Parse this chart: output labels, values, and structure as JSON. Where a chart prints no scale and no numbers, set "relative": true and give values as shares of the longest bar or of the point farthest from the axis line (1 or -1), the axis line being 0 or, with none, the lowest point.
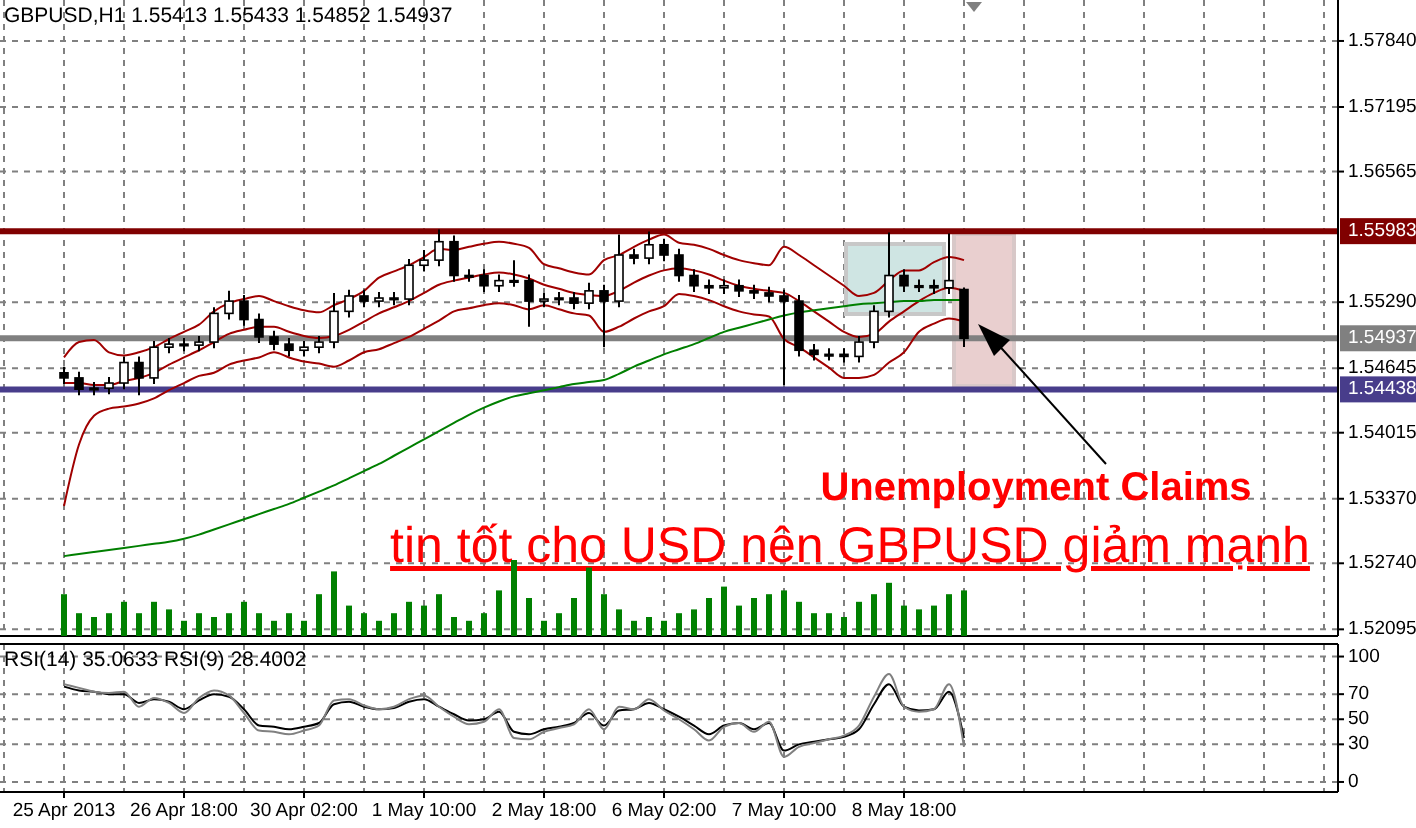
{
  "chart_data": [
    {
      "type": "candlestick",
      "title": "GBPUSD,H1 1.55413 1.55433 1.54852 1.54937",
      "categories": [
        null,
        null,
        null,
        null,
        null,
        null,
        null,
        null,
        null,
        null,
        null,
        null,
        null,
        null,
        null,
        null,
        null,
        null,
        null,
        null,
        null,
        null,
        null,
        null,
        null,
        null,
        null,
        null,
        null,
        null,
        null,
        null,
        null,
        null,
        null,
        null,
        null,
        null,
        null,
        null,
        null,
        null,
        null,
        null,
        null,
        null,
        null,
        null,
        null,
        null,
        null,
        null,
        null,
        null,
        null,
        null,
        null,
        null,
        null,
        null,
        null
      ],
      "ohlc": [
        [
          1.546,
          1.5466,
          1.5449,
          1.5455
        ],
        [
          1.5455,
          1.5461,
          1.5438,
          1.5444
        ],
        [
          1.5444,
          1.5451,
          1.5438,
          1.5445
        ],
        [
          1.5445,
          1.5456,
          1.5439,
          1.545
        ],
        [
          1.545,
          1.5476,
          1.5444,
          1.547
        ],
        [
          1.547,
          1.5476,
          1.5438,
          1.5455
        ],
        [
          1.5455,
          1.5491,
          1.5449,
          1.5485
        ],
        [
          1.5485,
          1.5494,
          1.5479,
          1.5488
        ],
        [
          1.5488,
          1.5494,
          1.5481,
          1.5487
        ],
        [
          1.5487,
          1.5496,
          1.5481,
          1.549
        ],
        [
          1.549,
          1.5524,
          1.5484,
          1.5518
        ],
        [
          1.5518,
          1.554,
          1.5512,
          1.553
        ],
        [
          1.553,
          1.5536,
          1.5506,
          1.5512
        ],
        [
          1.5512,
          1.5518,
          1.5489,
          1.5495
        ],
        [
          1.5495,
          1.5501,
          1.5482,
          1.5488
        ],
        [
          1.5488,
          1.5494,
          1.5476,
          1.5482
        ],
        [
          1.5482,
          1.5491,
          1.5476,
          1.5485
        ],
        [
          1.5485,
          1.5496,
          1.5479,
          1.549
        ],
        [
          1.549,
          1.5538,
          1.5484,
          1.552
        ],
        [
          1.552,
          1.5541,
          1.5514,
          1.5535
        ],
        [
          1.5535,
          1.5541,
          1.5524,
          1.553
        ],
        [
          1.553,
          1.5539,
          1.5524,
          1.5533
        ],
        [
          1.5533,
          1.5539,
          1.5526,
          1.5532
        ],
        [
          1.5532,
          1.5571,
          1.5526,
          1.5565
        ],
        [
          1.5565,
          1.558,
          1.5559,
          1.557
        ],
        [
          1.557,
          1.56,
          1.5564,
          1.5588
        ],
        [
          1.5588,
          1.5594,
          1.5549,
          1.5555
        ],
        [
          1.5555,
          1.5561,
          1.5549,
          1.5555
        ],
        [
          1.5555,
          1.5561,
          1.5539,
          1.5545
        ],
        [
          1.5545,
          1.5556,
          1.5539,
          1.555
        ],
        [
          1.555,
          1.557,
          1.5544,
          1.555
        ],
        [
          1.555,
          1.5556,
          1.5505,
          1.553
        ],
        [
          1.553,
          1.5538,
          1.5524,
          1.5532
        ],
        [
          1.5532,
          1.5539,
          1.5526,
          1.5533
        ],
        [
          1.5533,
          1.5539,
          1.5522,
          1.5528
        ],
        [
          1.5528,
          1.5548,
          1.5522,
          1.554
        ],
        [
          1.554,
          1.5546,
          1.5485,
          1.553
        ],
        [
          1.553,
          1.5595,
          1.5524,
          1.5575
        ],
        [
          1.5575,
          1.5581,
          1.5566,
          1.5572
        ],
        [
          1.5572,
          1.5598,
          1.5566,
          1.5585
        ],
        [
          1.5585,
          1.5591,
          1.5569,
          1.5575
        ],
        [
          1.5575,
          1.5581,
          1.5549,
          1.5555
        ],
        [
          1.5555,
          1.5561,
          1.5539,
          1.5545
        ],
        [
          1.5545,
          1.5551,
          1.5537,
          1.5543
        ],
        [
          1.5543,
          1.5551,
          1.5537,
          1.5545
        ],
        [
          1.5545,
          1.5551,
          1.5534,
          1.554
        ],
        [
          1.554,
          1.5546,
          1.5532,
          1.5538
        ],
        [
          1.5538,
          1.5544,
          1.5529,
          1.5535
        ],
        [
          1.5535,
          1.5541,
          1.5448,
          1.553
        ],
        [
          1.553,
          1.5536,
          1.5476,
          1.5482
        ],
        [
          1.5482,
          1.5488,
          1.5472,
          1.5478
        ],
        [
          1.5478,
          1.5484,
          1.5472,
          1.5478
        ],
        [
          1.5478,
          1.5484,
          1.547,
          1.5476
        ],
        [
          1.5476,
          1.5496,
          1.547,
          1.549
        ],
        [
          1.549,
          1.5526,
          1.5484,
          1.552
        ],
        [
          1.552,
          1.5597,
          1.5514,
          1.5555
        ],
        [
          1.5555,
          1.5561,
          1.5539,
          1.5545
        ],
        [
          1.5545,
          1.5551,
          1.5539,
          1.5545
        ],
        [
          1.5545,
          1.5551,
          1.5537,
          1.5543
        ],
        [
          1.5543,
          1.5596,
          1.5537,
          1.555
        ],
        [
          1.55413,
          1.55433,
          1.54852,
          1.54937
        ]
      ],
      "series": [
        {
          "type": "line",
          "color": "#a00000",
          "values": [
            1.5475,
            1.549,
            1.5492,
            1.548,
            1.5477,
            1.548,
            1.5485,
            1.5493,
            1.55,
            1.5507,
            1.552,
            1.5528,
            1.5532,
            1.5535,
            1.553,
            1.5525,
            1.5521,
            1.5519,
            1.5526,
            1.5532,
            1.554,
            1.5553,
            1.5559,
            1.5565,
            1.5573,
            1.5581,
            1.558,
            1.5583,
            1.5586,
            1.5588,
            1.5586,
            1.5582,
            1.5566,
            1.5562,
            1.5558,
            1.5556,
            1.557,
            1.5575,
            1.5583,
            1.559,
            1.5595,
            1.5587,
            1.5585,
            1.5581,
            1.5575,
            1.557,
            1.5567,
            1.5565,
            1.5583,
            1.5575,
            1.5565,
            1.5555,
            1.5545,
            1.5535,
            1.5538,
            1.555,
            1.556,
            1.556,
            1.5568,
            1.5573,
            1.557
          ]
        },
        {
          "type": "line",
          "color": "#a00000",
          "values": [
            1.545,
            1.545,
            1.5448,
            1.5448,
            1.5452,
            1.5455,
            1.546,
            1.5468,
            1.5475,
            1.5482,
            1.549,
            1.5498,
            1.5502,
            1.5505,
            1.5505,
            1.55,
            1.5496,
            1.5494,
            1.5496,
            1.5502,
            1.551,
            1.5518,
            1.5524,
            1.553,
            1.5538,
            1.5546,
            1.555,
            1.5553,
            1.5556,
            1.5558,
            1.5556,
            1.5552,
            1.5546,
            1.5542,
            1.5538,
            1.5536,
            1.5535,
            1.554,
            1.5548,
            1.5555,
            1.556,
            1.5562,
            1.556,
            1.5556,
            1.555,
            1.5545,
            1.5542,
            1.554,
            1.5538,
            1.553,
            1.552,
            1.551,
            1.55,
            1.5495,
            1.5498,
            1.551,
            1.552,
            1.553,
            1.5538,
            1.5543,
            1.554
          ]
        },
        {
          "type": "line",
          "color": "#a00000",
          "values": [
            1.533,
            1.539,
            1.5418,
            1.5425,
            1.5427,
            1.543,
            1.5435,
            1.5443,
            1.545,
            1.5457,
            1.546,
            1.5468,
            1.5472,
            1.5475,
            1.548,
            1.5475,
            1.5471,
            1.5469,
            1.5466,
            1.5472,
            1.548,
            1.5483,
            1.5489,
            1.5495,
            1.5503,
            1.5511,
            1.552,
            1.5523,
            1.5526,
            1.5528,
            1.5526,
            1.5522,
            1.5526,
            1.5522,
            1.5518,
            1.5516,
            1.55,
            1.5505,
            1.5513,
            1.552,
            1.5525,
            1.5537,
            1.5535,
            1.5531,
            1.5525,
            1.552,
            1.5517,
            1.5515,
            1.5493,
            1.5485,
            1.5475,
            1.5465,
            1.5455,
            1.5455,
            1.5458,
            1.547,
            1.548,
            1.55,
            1.5508,
            1.5513,
            1.551
          ]
        },
        {
          "type": "line",
          "color": "#007f00",
          "values": [
            1.5281,
            1.5283,
            1.5285,
            1.5287,
            1.5289,
            1.5291,
            1.5293,
            1.5295,
            1.5298,
            1.5302,
            1.5307,
            1.5312,
            1.5317,
            1.5322,
            1.5327,
            1.5332,
            1.5338,
            1.5344,
            1.535,
            1.5357,
            1.5364,
            1.5371,
            1.5379,
            1.5387,
            1.5395,
            1.5403,
            1.5411,
            1.5419,
            1.5426,
            1.5432,
            1.5437,
            1.544,
            1.5443,
            1.5446,
            1.5449,
            1.5451,
            1.5453,
            1.5459,
            1.5466,
            1.5472,
            1.5478,
            1.5483,
            1.5488,
            1.5494,
            1.55,
            1.5504,
            1.5508,
            1.5512,
            1.5516,
            1.5519,
            1.5521,
            1.5523,
            1.5525,
            1.5527,
            1.5528,
            1.5529,
            1.553,
            1.553,
            1.5531,
            1.5531,
            1.5531
          ]
        }
      ],
      "ylim": [
        1.5203,
        1.5824
      ],
      "yticks": [
        {
          "value": 1.5784,
          "label": "1.57840"
        },
        {
          "value": 1.57195,
          "label": "1.57195"
        },
        {
          "value": 1.56565,
          "label": "1.56565"
        },
        {
          "value": 1.5529,
          "label": "1.55290"
        },
        {
          "value": 1.54645,
          "label": "1.54645"
        },
        {
          "value": 1.54015,
          "label": "1.54015"
        },
        {
          "value": 1.5337,
          "label": "1.53370"
        },
        {
          "value": 1.5274,
          "label": "1.52740"
        },
        {
          "value": 1.52095,
          "label": "1.52095"
        }
      ],
      "grid": true,
      "ref_lines": [
        {
          "axis": "y",
          "value": 1.55983,
          "label": "1.55983",
          "color": "#800000"
        },
        {
          "axis": "y",
          "value": 1.54438,
          "label": "1.54438",
          "color": "#483d8b"
        },
        {
          "axis": "y",
          "value": 1.54937,
          "label": "1.54937",
          "color": "#808080"
        }
      ],
      "annotations": [
        "Unemployment Claims",
        "tin tốt cho USD nên GBPUSD giảm mạnh"
      ]
    },
    {
      "type": "bar",
      "relative": true,
      "color": "#008000",
      "categories": [
        null,
        null,
        null,
        null,
        null,
        null,
        null,
        null,
        null,
        null,
        null,
        null,
        null,
        null,
        null,
        null,
        null,
        null,
        null,
        null,
        null,
        null,
        null,
        null,
        null,
        null,
        null,
        null,
        null,
        null,
        null,
        null,
        null,
        null,
        null,
        null,
        null,
        null,
        null,
        null,
        null,
        null,
        null,
        null,
        null,
        null,
        null,
        null,
        null,
        null,
        null,
        null,
        null,
        null,
        null,
        null,
        null,
        null,
        null,
        null,
        null
      ],
      "values": [
        0.55,
        0.3,
        0.25,
        0.3,
        0.45,
        0.3,
        0.45,
        0.35,
        0.2,
        0.3,
        0.25,
        0.3,
        0.45,
        0.3,
        0.2,
        0.3,
        0.2,
        0.55,
        0.85,
        0.4,
        0.3,
        0.2,
        0.3,
        0.45,
        0.4,
        0.55,
        0.25,
        0.2,
        0.3,
        0.6,
        1,
        0.5,
        0.2,
        0.3,
        0.5,
        0.9,
        0.55,
        0.35,
        0.2,
        0.25,
        0.2,
        0.3,
        0.35,
        0.5,
        0.65,
        0.4,
        0.5,
        0.55,
        0.6,
        0.45,
        0.3,
        0.3,
        0.25,
        0.45,
        0.55,
        0.7,
        0.4,
        0.35,
        0.4,
        0.55,
        0.6
      ]
    },
    {
      "type": "line",
      "title": "RSI(14) 35.0633  RSI(9) 28.4002",
      "categories": [
        "25 Apr 2013",
        null,
        null,
        null,
        null,
        null,
        null,
        null,
        "26 Apr 18:00",
        null,
        null,
        null,
        null,
        null,
        null,
        null,
        "30 Apr 02:00",
        null,
        null,
        null,
        null,
        null,
        null,
        null,
        "1 May 10:00",
        null,
        null,
        null,
        null,
        null,
        null,
        null,
        "2 May 18:00",
        null,
        null,
        null,
        null,
        null,
        null,
        null,
        "6 May 02:00",
        null,
        null,
        null,
        null,
        null,
        null,
        null,
        "7 May 10:00",
        null,
        null,
        null,
        null,
        null,
        null,
        null,
        "8 May 18:00",
        null,
        null,
        null,
        null
      ],
      "series": [
        {
          "color": "#000000",
          "values": [
            76,
            73,
            72,
            70,
            70,
            63,
            66,
            64,
            58,
            65,
            70,
            68,
            58,
            45,
            44,
            42,
            44,
            47,
            62,
            64,
            60,
            58,
            59,
            64,
            66,
            60,
            54,
            49,
            50,
            56,
            40,
            38,
            42,
            44,
            47,
            55,
            45,
            57,
            58,
            63,
            58,
            52,
            45,
            38,
            45,
            47,
            42,
            47,
            25,
            30,
            32,
            34,
            36,
            42,
            62,
            78,
            60,
            57,
            58,
            72,
            35
          ]
        },
        {
          "color": "#808080",
          "values": [
            78,
            75,
            72,
            71,
            72,
            60,
            67,
            63,
            55,
            67,
            73,
            69,
            55,
            41,
            40,
            38,
            41,
            45,
            65,
            66,
            61,
            58,
            60,
            66,
            69,
            60,
            52,
            46,
            48,
            58,
            35,
            34,
            40,
            43,
            46,
            58,
            42,
            60,
            58,
            66,
            57,
            50,
            42,
            33,
            44,
            47,
            40,
            48,
            20,
            28,
            31,
            34,
            37,
            45,
            68,
            86,
            60,
            56,
            58,
            78,
            28
          ]
        }
      ],
      "ylim": [
        -8,
        110
      ],
      "yticks": [
        0,
        30,
        50,
        70,
        100
      ],
      "grid": true
    }
  ]
}
